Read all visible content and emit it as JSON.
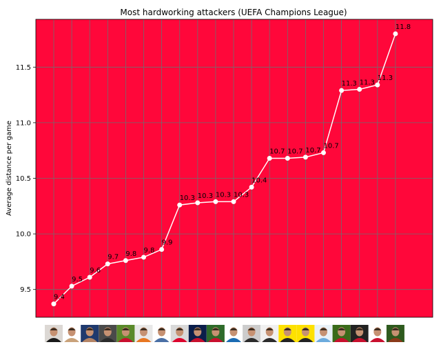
{
  "chart_data": {
    "type": "line",
    "title": "Most hardworking attackers (UEFA Champions League)",
    "xlabel": "",
    "ylabel": "Average distance per game",
    "x_tick_labels": "player photos",
    "ylim": [
      9.25,
      11.93
    ],
    "yticks": [
      9.5,
      10.0,
      10.5,
      11.0,
      11.5
    ],
    "ytick_labels": [
      "9.5",
      "10.0",
      "10.5",
      "11.0",
      "11.5"
    ],
    "grid": true,
    "legend": "none",
    "series": [
      {
        "values": [
          9.37,
          9.53,
          9.61,
          9.73,
          9.76,
          9.79,
          9.86,
          10.26,
          10.28,
          10.29,
          10.29,
          10.42,
          10.68,
          10.68,
          10.69,
          10.73,
          11.29,
          11.3,
          11.34,
          11.8
        ],
        "data_labels": [
          "9.4",
          "9.5",
          "9.6",
          "9.7",
          "9.8",
          "9.8",
          "9.9",
          "10.3",
          "10.3",
          "10.3",
          "10.3",
          "10.4",
          "10.7",
          "10.7",
          "10.7",
          "10.7",
          "11.3",
          "11.3",
          "11.3",
          "11.8"
        ]
      }
    ],
    "player_photo_colors": [
      [
        "#dcd8d4",
        "#1a1a1a"
      ],
      [
        "#ffffff",
        "#c9a27a"
      ],
      [
        "#1f3a6e",
        "#b58566"
      ],
      [
        "#4a4a4a",
        "#2b2b2b"
      ],
      [
        "#5a8a2a",
        "#c8102e"
      ],
      [
        "#e8e8e8",
        "#e87722"
      ],
      [
        "#ffffff",
        "#4a6fa5"
      ],
      [
        "#d9d9d9",
        "#dc052d"
      ],
      [
        "#0b1e4a",
        "#c8102e"
      ],
      [
        "#2e6b2a",
        "#c8102e"
      ],
      [
        "#ffffff",
        "#1a6bb3"
      ],
      [
        "#cccccc",
        "#2b2b2b"
      ],
      [
        "#f0f0f0",
        "#2b2b2b"
      ],
      [
        "#fde100",
        "#222222"
      ],
      [
        "#fde100",
        "#222222"
      ],
      [
        "#e8f1f8",
        "#6cabdd"
      ],
      [
        "#3a6b1a",
        "#c8102e"
      ],
      [
        "#222222",
        "#c8102e"
      ],
      [
        "#ffffff",
        "#c8102e"
      ],
      [
        "#2e5a1e",
        "#8a3a1a"
      ]
    ]
  },
  "colors": {
    "plot_background": "#ff073a",
    "line": "#ffffff",
    "grid": "#6e6e6e"
  }
}
